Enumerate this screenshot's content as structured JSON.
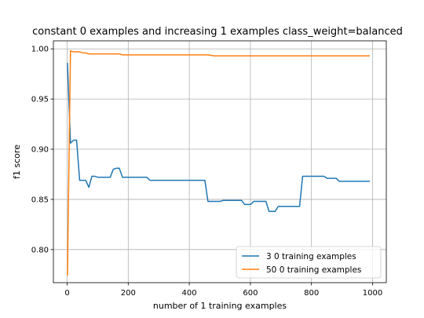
{
  "chart_data": {
    "type": "line",
    "title": "constant 0 examples and increasing 1 examples class_weight=balanced",
    "xlabel": "number of 1 training examples",
    "ylabel": "f1 score",
    "xlim": [
      -45,
      1045
    ],
    "ylim": [
      0.767,
      1.008
    ],
    "xticks": [
      0,
      200,
      400,
      600,
      800,
      1000
    ],
    "yticks": [
      0.8,
      0.85,
      0.9,
      0.95,
      1.0
    ],
    "xtick_labels": [
      "0",
      "200",
      "400",
      "600",
      "800",
      "1000"
    ],
    "ytick_labels": [
      "0.80",
      "0.85",
      "0.90",
      "0.95",
      "1.00"
    ],
    "grid": true,
    "legend_position": "lower-right",
    "series": [
      {
        "name": "3 0 training examples",
        "color": "#1f77b4",
        "points": [
          [
            1,
            0.986
          ],
          [
            11,
            0.906
          ],
          [
            21,
            0.909
          ],
          [
            31,
            0.909
          ],
          [
            41,
            0.869
          ],
          [
            51,
            0.869
          ],
          [
            61,
            0.869
          ],
          [
            71,
            0.862
          ],
          [
            81,
            0.873
          ],
          [
            91,
            0.873
          ],
          [
            101,
            0.872
          ],
          [
            111,
            0.872
          ],
          [
            121,
            0.872
          ],
          [
            131,
            0.872
          ],
          [
            141,
            0.872
          ],
          [
            151,
            0.88
          ],
          [
            161,
            0.881
          ],
          [
            171,
            0.881
          ],
          [
            181,
            0.872
          ],
          [
            191,
            0.872
          ],
          [
            201,
            0.872
          ],
          [
            211,
            0.872
          ],
          [
            221,
            0.872
          ],
          [
            231,
            0.872
          ],
          [
            241,
            0.872
          ],
          [
            251,
            0.872
          ],
          [
            261,
            0.872
          ],
          [
            271,
            0.869
          ],
          [
            281,
            0.869
          ],
          [
            291,
            0.869
          ],
          [
            301,
            0.869
          ],
          [
            311,
            0.869
          ],
          [
            321,
            0.869
          ],
          [
            331,
            0.869
          ],
          [
            341,
            0.869
          ],
          [
            351,
            0.869
          ],
          [
            361,
            0.869
          ],
          [
            371,
            0.869
          ],
          [
            381,
            0.869
          ],
          [
            391,
            0.869
          ],
          [
            401,
            0.869
          ],
          [
            411,
            0.869
          ],
          [
            421,
            0.869
          ],
          [
            431,
            0.869
          ],
          [
            441,
            0.869
          ],
          [
            451,
            0.869
          ],
          [
            461,
            0.848
          ],
          [
            471,
            0.848
          ],
          [
            481,
            0.848
          ],
          [
            491,
            0.848
          ],
          [
            501,
            0.848
          ],
          [
            511,
            0.849
          ],
          [
            521,
            0.849
          ],
          [
            531,
            0.849
          ],
          [
            541,
            0.849
          ],
          [
            551,
            0.849
          ],
          [
            561,
            0.849
          ],
          [
            571,
            0.849
          ],
          [
            581,
            0.845
          ],
          [
            591,
            0.845
          ],
          [
            601,
            0.845
          ],
          [
            611,
            0.848
          ],
          [
            621,
            0.848
          ],
          [
            631,
            0.848
          ],
          [
            641,
            0.848
          ],
          [
            651,
            0.848
          ],
          [
            661,
            0.838
          ],
          [
            671,
            0.838
          ],
          [
            681,
            0.838
          ],
          [
            691,
            0.843
          ],
          [
            701,
            0.843
          ],
          [
            711,
            0.843
          ],
          [
            721,
            0.843
          ],
          [
            731,
            0.843
          ],
          [
            741,
            0.843
          ],
          [
            751,
            0.843
          ],
          [
            761,
            0.843
          ],
          [
            771,
            0.873
          ],
          [
            781,
            0.873
          ],
          [
            791,
            0.873
          ],
          [
            801,
            0.873
          ],
          [
            811,
            0.873
          ],
          [
            821,
            0.873
          ],
          [
            831,
            0.873
          ],
          [
            841,
            0.873
          ],
          [
            851,
            0.871
          ],
          [
            861,
            0.871
          ],
          [
            871,
            0.871
          ],
          [
            881,
            0.871
          ],
          [
            891,
            0.868
          ],
          [
            901,
            0.868
          ],
          [
            911,
            0.868
          ],
          [
            921,
            0.868
          ],
          [
            931,
            0.868
          ],
          [
            941,
            0.868
          ],
          [
            951,
            0.868
          ],
          [
            961,
            0.868
          ],
          [
            971,
            0.868
          ],
          [
            981,
            0.868
          ],
          [
            991,
            0.868
          ]
        ]
      },
      {
        "name": "50 0 training examples",
        "color": "#ff7f0e",
        "points": [
          [
            1,
            0.774
          ],
          [
            11,
            0.998
          ],
          [
            21,
            0.997
          ],
          [
            31,
            0.997
          ],
          [
            41,
            0.997
          ],
          [
            51,
            0.996
          ],
          [
            61,
            0.996
          ],
          [
            71,
            0.995
          ],
          [
            81,
            0.995
          ],
          [
            91,
            0.995
          ],
          [
            101,
            0.995
          ],
          [
            111,
            0.995
          ],
          [
            121,
            0.995
          ],
          [
            131,
            0.995
          ],
          [
            141,
            0.995
          ],
          [
            151,
            0.995
          ],
          [
            161,
            0.995
          ],
          [
            171,
            0.995
          ],
          [
            181,
            0.994
          ],
          [
            201,
            0.994
          ],
          [
            221,
            0.994
          ],
          [
            241,
            0.994
          ],
          [
            261,
            0.994
          ],
          [
            281,
            0.994
          ],
          [
            301,
            0.994
          ],
          [
            321,
            0.994
          ],
          [
            341,
            0.994
          ],
          [
            361,
            0.994
          ],
          [
            381,
            0.994
          ],
          [
            401,
            0.994
          ],
          [
            421,
            0.994
          ],
          [
            441,
            0.994
          ],
          [
            461,
            0.994
          ],
          [
            481,
            0.993
          ],
          [
            501,
            0.993
          ],
          [
            521,
            0.993
          ],
          [
            541,
            0.993
          ],
          [
            561,
            0.993
          ],
          [
            581,
            0.993
          ],
          [
            601,
            0.993
          ],
          [
            621,
            0.993
          ],
          [
            641,
            0.993
          ],
          [
            661,
            0.993
          ],
          [
            681,
            0.993
          ],
          [
            701,
            0.993
          ],
          [
            721,
            0.993
          ],
          [
            741,
            0.993
          ],
          [
            761,
            0.993
          ],
          [
            781,
            0.993
          ],
          [
            801,
            0.993
          ],
          [
            821,
            0.993
          ],
          [
            841,
            0.993
          ],
          [
            861,
            0.993
          ],
          [
            881,
            0.993
          ],
          [
            901,
            0.993
          ],
          [
            921,
            0.993
          ],
          [
            941,
            0.993
          ],
          [
            961,
            0.993
          ],
          [
            981,
            0.993
          ],
          [
            991,
            0.993
          ]
        ]
      }
    ]
  }
}
